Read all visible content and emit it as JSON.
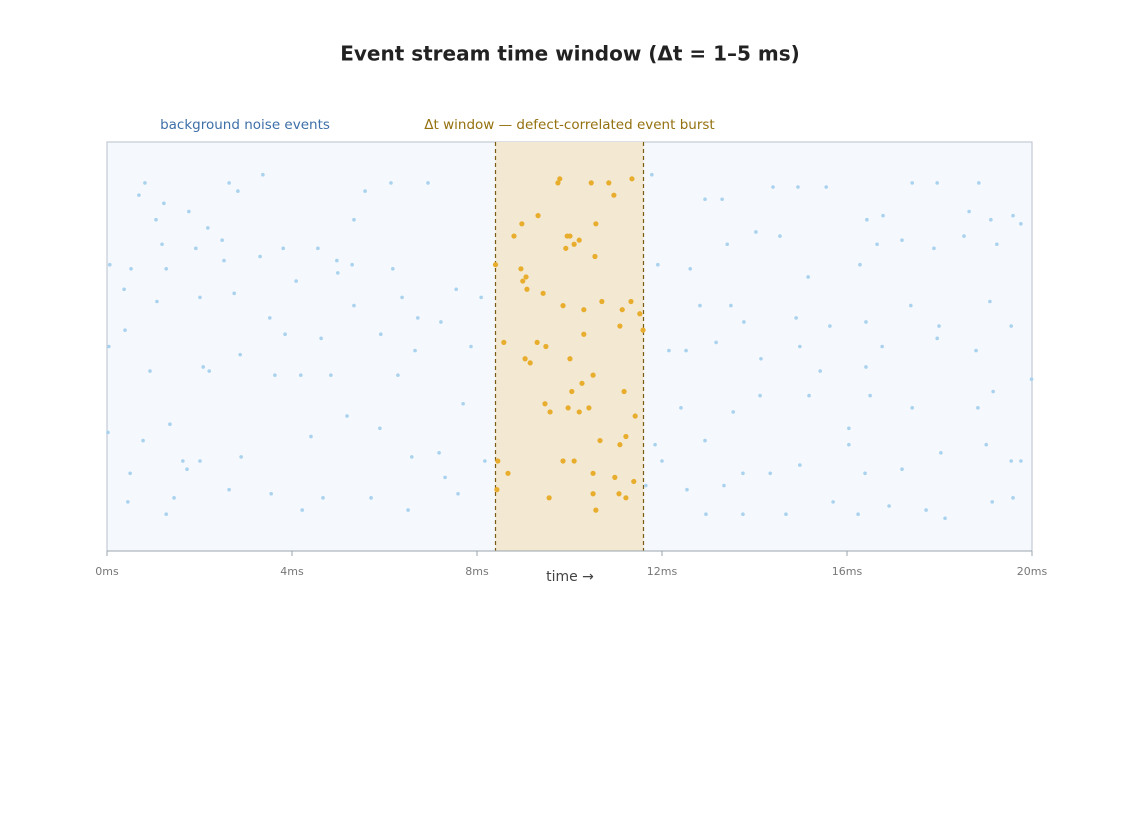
{
  "chart_data": {
    "type": "scatter",
    "title": "Event stream time window (Δt = 1–5 ms)",
    "xlabel": "time →",
    "xlim": [
      0,
      20
    ],
    "xticks": [
      {
        "value": 0,
        "label": "0ms"
      },
      {
        "value": 4,
        "label": "4ms"
      },
      {
        "value": 8,
        "label": "8ms"
      },
      {
        "value": 12,
        "label": "12ms"
      },
      {
        "value": 16,
        "label": "16ms"
      },
      {
        "value": 20,
        "label": "20ms"
      }
    ],
    "ylim": [
      0,
      1
    ],
    "window": [
      8.4,
      11.6
    ],
    "series": [
      {
        "name": "background noise events",
        "color": "#a9d2ee",
        "x": [
          0.82,
          0.69,
          1.23,
          1.06,
          1.77,
          2.64,
          3.37,
          2.83,
          2.18,
          2.49,
          1.19,
          1.92,
          0.52,
          0.06,
          1.28,
          2.53,
          3.31,
          3.81,
          0.37,
          1.08,
          2.01,
          2.75,
          3.52,
          4.09,
          4.56,
          4.97,
          5.34,
          5.58,
          6.14,
          6.94,
          6.18,
          6.38,
          6.72,
          7.22,
          7.55,
          8.09,
          7.87,
          6.66,
          5.92,
          5.34,
          4.63,
          3.85,
          2.88,
          2.08,
          0.93,
          0.04,
          0.39,
          1.36,
          0.78,
          0.02,
          1.64,
          2.01,
          2.9,
          3.63,
          4.19,
          4.84,
          5.19,
          5.9,
          6.29,
          6.59,
          7.18,
          7.7,
          7.59,
          6.51,
          5.71,
          4.67,
          4.22,
          3.55,
          2.64,
          1.45,
          1.28,
          0.45,
          0.5,
          1.73,
          2.21,
          4.41,
          5.3,
          4.99,
          7.31,
          8.17,
          11.78,
          12.93,
          13.3,
          14.4,
          14.94,
          15.55,
          16.43,
          16.78,
          17.41,
          17.95,
          18.85,
          18.64,
          19.11,
          19.59,
          19.76,
          19.24,
          18.53,
          17.88,
          17.19,
          16.65,
          16.28,
          15.16,
          14.55,
          14.03,
          13.41,
          12.61,
          11.91,
          12.82,
          13.49,
          13.77,
          14.9,
          15.63,
          16.41,
          17.38,
          17.99,
          19.09,
          19.55,
          12.15,
          12.52,
          13.17,
          14.14,
          14.98,
          15.42,
          16.41,
          16.76,
          17.95,
          18.79,
          19.99,
          19.16,
          18.83,
          17.41,
          16.5,
          16.04,
          15.18,
          14.12,
          13.54,
          12.41,
          11.85,
          12.93,
          13.75,
          14.34,
          14.98,
          16.04,
          16.39,
          17.19,
          18.03,
          19.01,
          19.55,
          19.76,
          19.59,
          19.14,
          18.12,
          17.71,
          16.91,
          16.24,
          15.7,
          14.68,
          12.95,
          13.75,
          13.34,
          12.54,
          12.0,
          11.65
        ],
        "y": [
          0.9,
          0.87,
          0.85,
          0.81,
          0.83,
          0.9,
          0.92,
          0.88,
          0.79,
          0.76,
          0.75,
          0.74,
          0.69,
          0.7,
          0.69,
          0.71,
          0.72,
          0.74,
          0.64,
          0.61,
          0.62,
          0.63,
          0.57,
          0.66,
          0.74,
          0.71,
          0.81,
          0.88,
          0.9,
          0.9,
          0.69,
          0.62,
          0.57,
          0.56,
          0.64,
          0.62,
          0.5,
          0.49,
          0.53,
          0.6,
          0.52,
          0.53,
          0.48,
          0.45,
          0.44,
          0.5,
          0.54,
          0.31,
          0.27,
          0.29,
          0.22,
          0.22,
          0.23,
          0.43,
          0.43,
          0.43,
          0.33,
          0.3,
          0.43,
          0.23,
          0.24,
          0.36,
          0.14,
          0.1,
          0.13,
          0.13,
          0.1,
          0.14,
          0.15,
          0.13,
          0.09,
          0.12,
          0.19,
          0.2,
          0.44,
          0.28,
          0.7,
          0.68,
          0.18,
          0.22,
          0.92,
          0.86,
          0.86,
          0.89,
          0.89,
          0.89,
          0.81,
          0.82,
          0.9,
          0.9,
          0.9,
          0.83,
          0.81,
          0.82,
          0.8,
          0.75,
          0.77,
          0.74,
          0.76,
          0.75,
          0.7,
          0.67,
          0.77,
          0.78,
          0.75,
          0.69,
          0.7,
          0.6,
          0.6,
          0.56,
          0.57,
          0.55,
          0.56,
          0.6,
          0.55,
          0.61,
          0.55,
          0.49,
          0.49,
          0.51,
          0.47,
          0.5,
          0.44,
          0.45,
          0.5,
          0.52,
          0.49,
          0.42,
          0.39,
          0.35,
          0.35,
          0.38,
          0.3,
          0.38,
          0.38,
          0.34,
          0.35,
          0.26,
          0.27,
          0.19,
          0.19,
          0.21,
          0.26,
          0.19,
          0.2,
          0.24,
          0.26,
          0.22,
          0.22,
          0.13,
          0.12,
          0.08,
          0.1,
          0.11,
          0.09,
          0.12,
          0.09,
          0.09,
          0.09,
          0.16,
          0.15,
          0.22,
          0.16
        ]
      },
      {
        "name": "Δt window — defect-correlated event burst",
        "color": "#e8ad2c",
        "x": [
          9.75,
          9.79,
          10.47,
          10.85,
          11.35,
          10.96,
          9.32,
          8.97,
          8.8,
          10.57,
          9.95,
          10.01,
          10.21,
          9.92,
          10.1,
          10.55,
          8.4,
          8.95,
          9.06,
          8.99,
          9.08,
          9.43,
          10.7,
          9.86,
          11.33,
          11.14,
          11.52,
          10.31,
          11.09,
          11.59,
          10.31,
          8.58,
          9.3,
          9.49,
          10.01,
          9.04,
          9.15,
          10.51,
          10.27,
          10.05,
          11.18,
          9.47,
          9.58,
          9.97,
          10.21,
          10.42,
          11.42,
          11.22,
          11.09,
          10.66,
          8.45,
          9.86,
          10.1,
          8.67,
          10.51,
          10.98,
          11.39,
          8.43,
          11.07,
          10.51,
          9.56,
          11.22,
          10.57
        ],
        "y": [
          0.9,
          0.91,
          0.9,
          0.9,
          0.91,
          0.87,
          0.82,
          0.8,
          0.77,
          0.8,
          0.77,
          0.77,
          0.76,
          0.74,
          0.75,
          0.72,
          0.7,
          0.69,
          0.67,
          0.66,
          0.64,
          0.63,
          0.61,
          0.6,
          0.61,
          0.59,
          0.58,
          0.59,
          0.55,
          0.54,
          0.53,
          0.51,
          0.51,
          0.5,
          0.47,
          0.47,
          0.46,
          0.43,
          0.41,
          0.39,
          0.39,
          0.36,
          0.34,
          0.35,
          0.34,
          0.35,
          0.33,
          0.28,
          0.26,
          0.27,
          0.22,
          0.22,
          0.22,
          0.19,
          0.19,
          0.18,
          0.17,
          0.15,
          0.14,
          0.14,
          0.13,
          0.13,
          0.1
        ]
      }
    ]
  }
}
